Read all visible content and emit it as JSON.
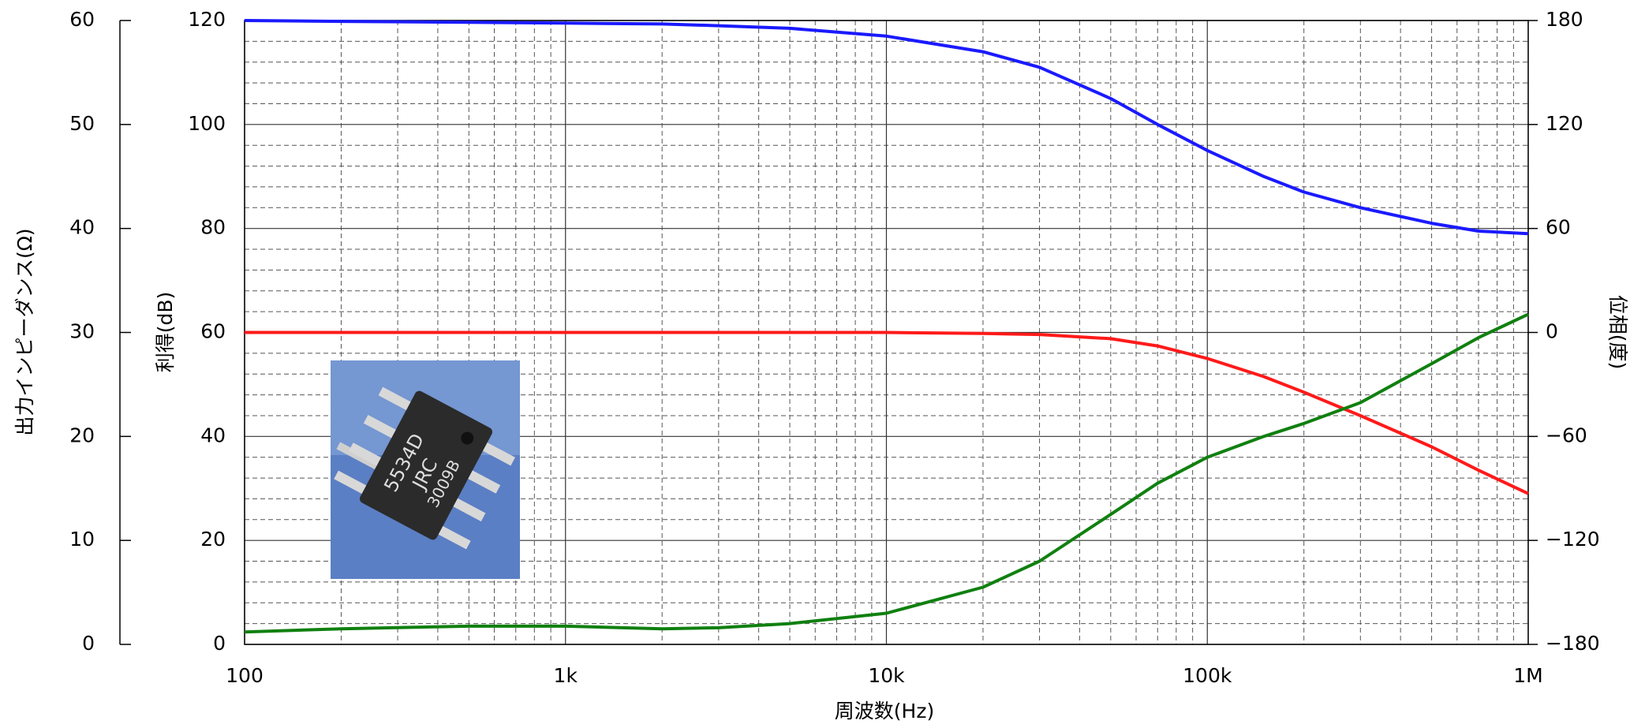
{
  "chart_data": {
    "type": "line",
    "xlabel": "周波数(Hz)",
    "ylabel": "利得(dB)",
    "y2label": "位相(度)",
    "y3label": "出力インピーダンス(Ω)",
    "xscale": "log",
    "xlim": [
      100,
      1000000
    ],
    "xticks": [
      {
        "value": 100,
        "label": "100"
      },
      {
        "value": 1000,
        "label": "1k"
      },
      {
        "value": 10000,
        "label": "10k"
      },
      {
        "value": 100000,
        "label": "100k"
      },
      {
        "value": 1000000,
        "label": "1M"
      }
    ],
    "ylim": [
      0,
      120
    ],
    "yticks": [
      0,
      20,
      40,
      60,
      80,
      100,
      120
    ],
    "y2lim": [
      -180,
      180
    ],
    "y2ticks": [
      {
        "value": -180,
        "label": "−180"
      },
      {
        "value": -120,
        "label": "−120"
      },
      {
        "value": -60,
        "label": "−60"
      },
      0,
      60,
      120,
      180
    ],
    "y3lim": [
      0,
      60
    ],
    "y3ticks": [
      0,
      10,
      20,
      30,
      40,
      50,
      60
    ],
    "grid": true,
    "inset_text": [
      "5534D",
      "JRC",
      "3009B"
    ],
    "x": [
      100,
      200,
      500,
      1000,
      2000,
      3000,
      5000,
      10000,
      20000,
      30000,
      50000,
      70000,
      100000,
      150000,
      200000,
      300000,
      500000,
      700000,
      1000000
    ],
    "series": [
      {
        "name": "利得",
        "color": "#ff1a1a",
        "axis": "y",
        "values": [
          60,
          60,
          60,
          60,
          60,
          60,
          60,
          60,
          59.8,
          59.6,
          58.8,
          57.4,
          55,
          51.5,
          48.5,
          44,
          38,
          33.5,
          29
        ]
      },
      {
        "name": "位相",
        "color": "#1a1aff",
        "axis": "y2",
        "values": [
          180,
          179.5,
          179,
          178.5,
          178,
          177,
          175.5,
          171,
          162,
          153,
          135,
          120,
          105,
          90,
          81,
          72,
          63,
          58.5,
          57
        ]
      },
      {
        "name": "出力インピーダンス",
        "color": "#108010",
        "axis": "y3",
        "values": [
          1.2,
          1.5,
          1.75,
          1.75,
          1.5,
          1.6,
          2,
          3,
          5.5,
          8,
          12.5,
          15.5,
          18,
          20,
          21.25,
          23.25,
          27,
          29.5,
          31.75
        ]
      }
    ]
  }
}
